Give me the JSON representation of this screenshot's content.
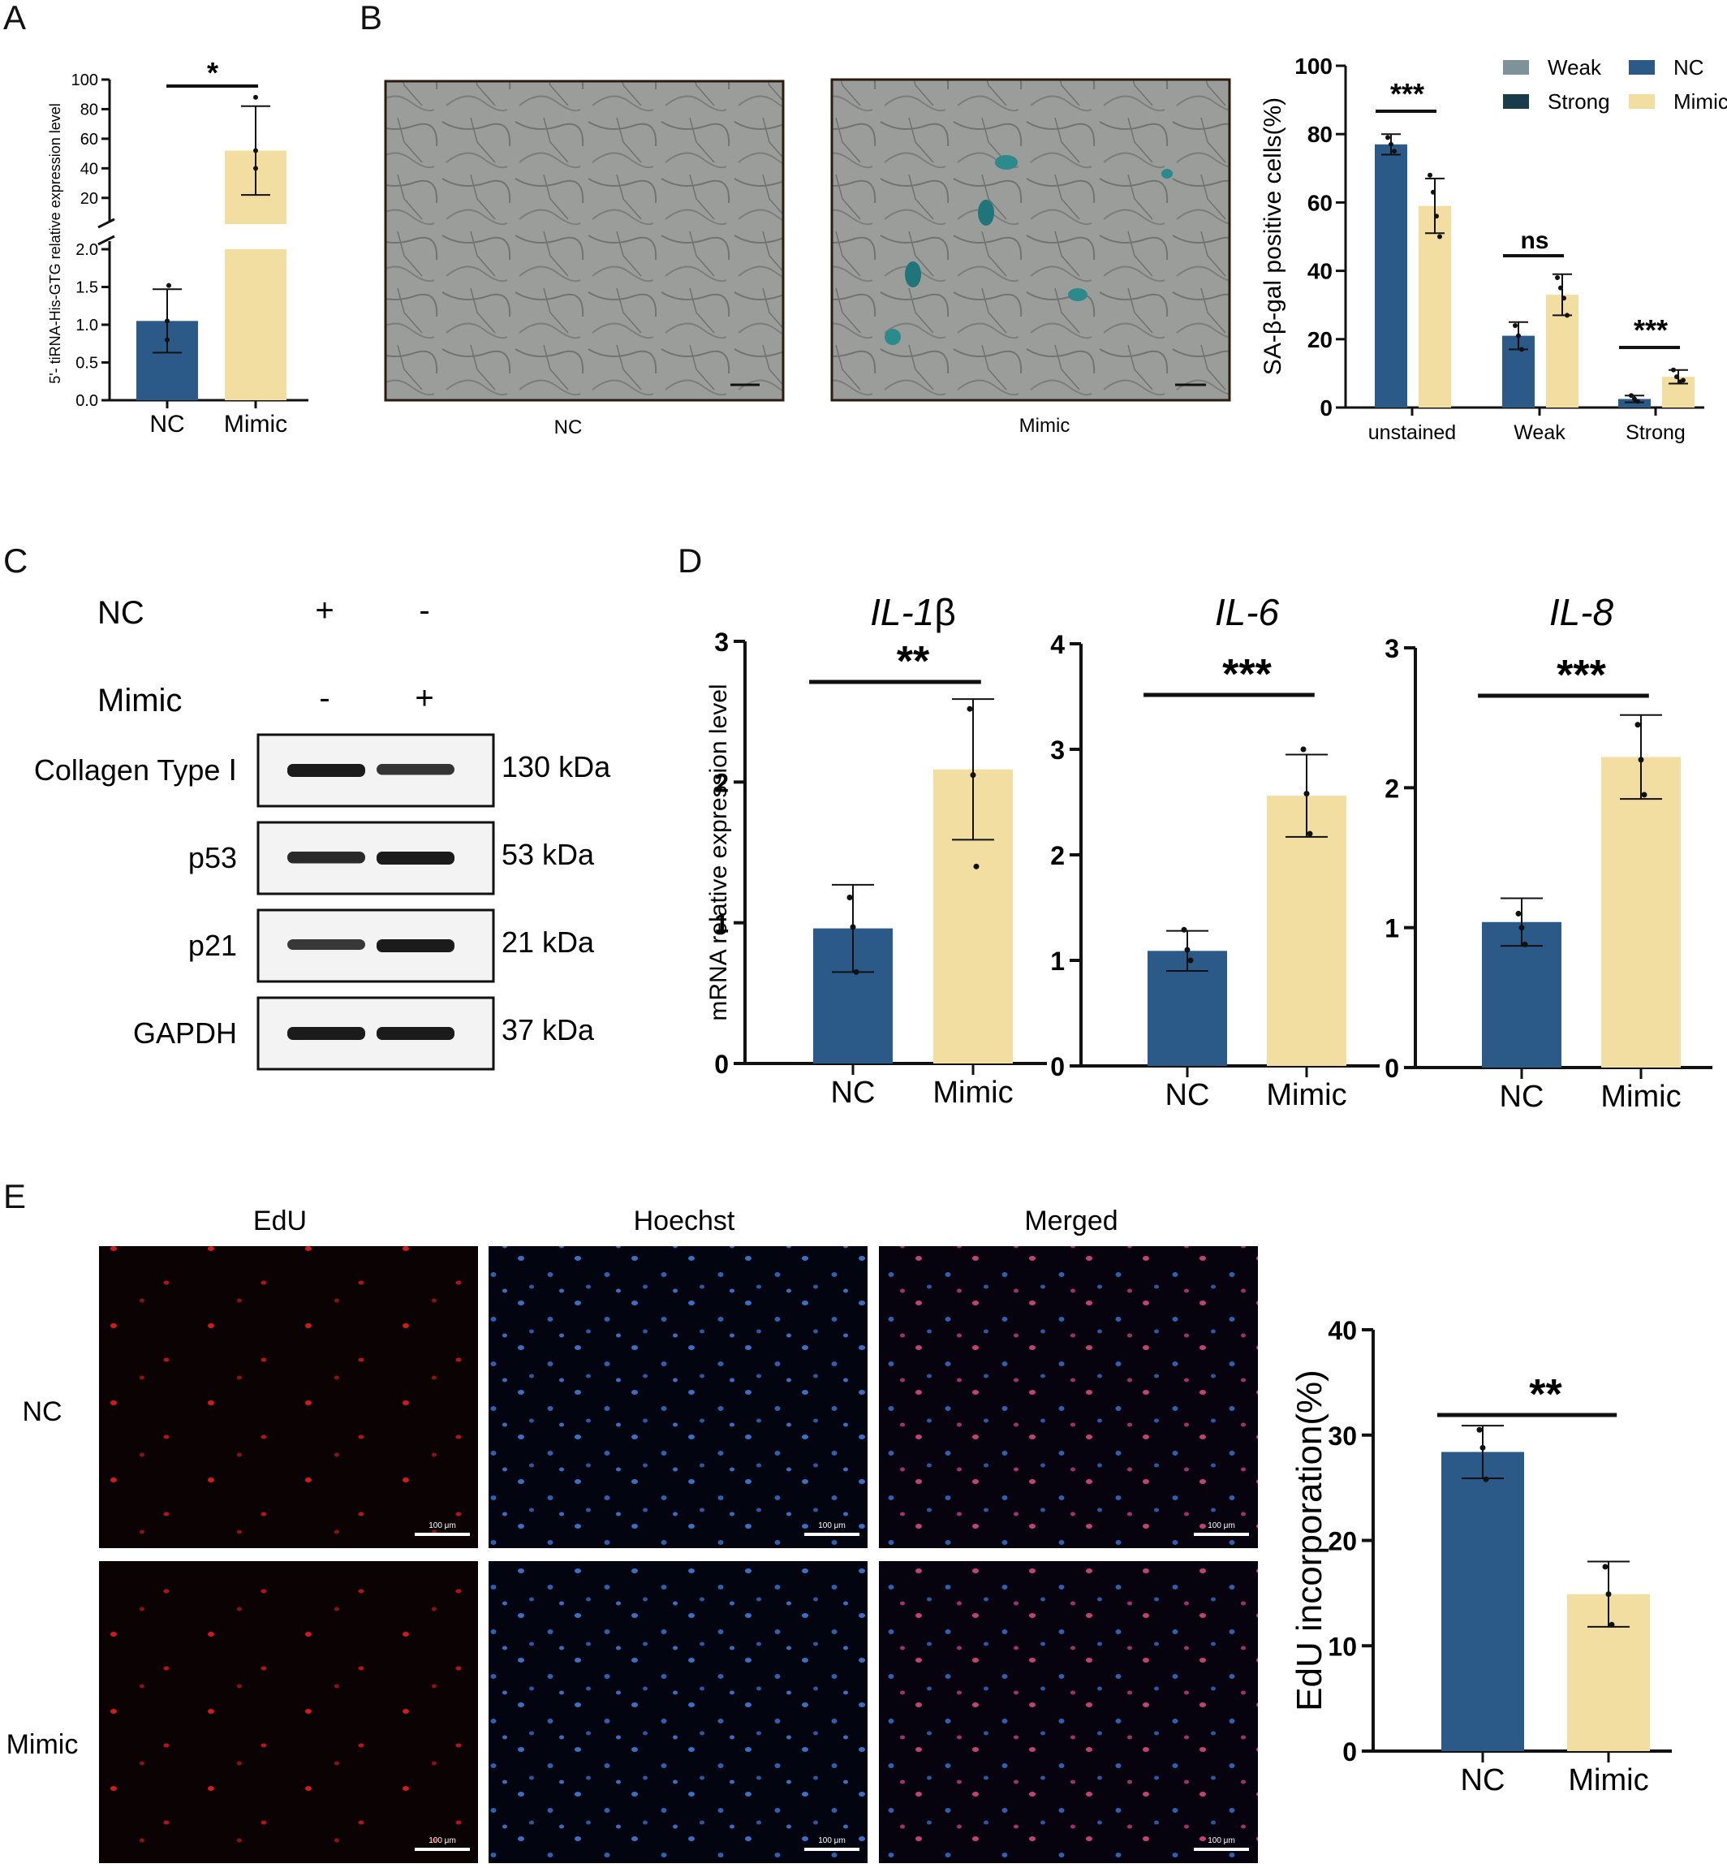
{
  "colors": {
    "nc": "#2c5a88",
    "mimic": "#f3dea2",
    "axis": "#111111",
    "point": "#111111"
  },
  "panels": {
    "A": {
      "letter": "A"
    },
    "B": {
      "letter": "B",
      "image_labels": [
        "NC",
        "Mimic"
      ]
    },
    "C": {
      "letter": "C",
      "row_labels": [
        "NC",
        "Mimic"
      ],
      "row_signs": [
        [
          "+",
          "-"
        ],
        [
          "-",
          "+"
        ]
      ],
      "proteins": [
        {
          "name": "Collagen Type Ⅰ",
          "size": "130  kDa",
          "intensity": [
            1.0,
            0.75
          ]
        },
        {
          "name": "p53",
          "size": "53  kDa",
          "intensity": [
            0.85,
            1.0
          ]
        },
        {
          "name": "p21",
          "size": "21  kDa",
          "intensity": [
            0.7,
            1.0
          ]
        },
        {
          "name": "GAPDH",
          "size": "37  kDa",
          "intensity": [
            1.0,
            1.0
          ]
        }
      ]
    },
    "D": {
      "letter": "D"
    },
    "E": {
      "letter": "E",
      "column_labels": [
        "EdU",
        "Hoechst",
        "Merged"
      ],
      "row_labels": [
        "NC",
        "Mimic"
      ],
      "scale_label": "100 μm"
    }
  },
  "chart_data": [
    {
      "id": "A",
      "type": "bar",
      "broken_axis": true,
      "categories": [
        "NC",
        "Mimic"
      ],
      "values": [
        1.05,
        52
      ],
      "errors": [
        0.42,
        30
      ],
      "points": [
        [
          1.52,
          1.05,
          0.55
        ],
        [
          88,
          52,
          40
        ]
      ],
      "ylabel": "5'- tiRNA-His-GTG relative expression level",
      "lower_ticks": [
        "0.0",
        "0.5",
        "1.0",
        "1.5",
        "2.0"
      ],
      "upper_ticks": [
        "20",
        "40",
        "60",
        "80",
        "100"
      ],
      "ylim_lower": [
        0,
        2
      ],
      "ylim_upper": [
        10,
        100
      ],
      "significance": "*"
    },
    {
      "id": "B",
      "type": "bar",
      "categories": [
        "unstained",
        "Weak",
        "Strong"
      ],
      "series": [
        {
          "name": "NC",
          "values": [
            77,
            21,
            2.5
          ],
          "errors": [
            3,
            4,
            1
          ],
          "points": [
            [
              79,
              77,
              75
            ],
            [
              24,
              21,
              17
            ],
            [
              3.5,
              2.5,
              1.8
            ]
          ]
        },
        {
          "name": "Mimic",
          "values": [
            59,
            33,
            9
          ],
          "errors": [
            8,
            6,
            2
          ],
          "points": [
            [
              68,
              63,
              56,
              50
            ],
            [
              38,
              35,
              32,
              27
            ],
            [
              11,
              9,
              7.5,
              8
            ]
          ]
        }
      ],
      "ylabel": "SA-β-gal positive cells(%)",
      "yticks": [
        "0",
        "20",
        "40",
        "60",
        "80",
        "100"
      ],
      "ylim": [
        0,
        100
      ],
      "significance": [
        "***",
        "ns",
        "***"
      ],
      "legend": [
        {
          "label": "Weak",
          "kind": "image"
        },
        {
          "label": "NC",
          "kind": "swatch"
        },
        {
          "label": "Strong",
          "kind": "image"
        },
        {
          "label": "Mimic",
          "kind": "swatch"
        }
      ],
      "legend_position": "top-right"
    },
    {
      "id": "D1",
      "type": "bar",
      "title": "IL-1",
      "title_suffix": "β",
      "categories": [
        "NC",
        "Mimic"
      ],
      "values": [
        0.96,
        2.09
      ],
      "errors": [
        0.31,
        0.5
      ],
      "points": [
        [
          1.18,
          0.97,
          0.65
        ],
        [
          2.52,
          2.05,
          1.4
        ]
      ],
      "ylabel": "mRNA relative expression level",
      "yticks": [
        "0",
        "1",
        "2",
        "3"
      ],
      "ylim": [
        0,
        3
      ],
      "significance": "**"
    },
    {
      "id": "D2",
      "type": "bar",
      "title": "IL-6",
      "title_suffix": "",
      "categories": [
        "NC",
        "Mimic"
      ],
      "values": [
        1.09,
        2.56
      ],
      "errors": [
        0.19,
        0.39
      ],
      "points": [
        [
          1.29,
          1.1,
          1.0
        ],
        [
          3.0,
          2.58,
          2.2
        ]
      ],
      "yticks": [
        "0",
        "1",
        "2",
        "3",
        "4"
      ],
      "ylim": [
        0,
        4
      ],
      "significance": "***"
    },
    {
      "id": "D3",
      "type": "bar",
      "title": "IL-8",
      "title_suffix": "",
      "categories": [
        "NC",
        "Mimic"
      ],
      "values": [
        1.04,
        2.22
      ],
      "errors": [
        0.17,
        0.3
      ],
      "points": [
        [
          1.1,
          1.0,
          0.88
        ],
        [
          2.45,
          2.2,
          1.95
        ]
      ],
      "yticks": [
        "0",
        "1",
        "2",
        "3"
      ],
      "ylim": [
        0,
        3
      ],
      "significance": "***"
    },
    {
      "id": "E",
      "type": "bar",
      "categories": [
        "NC",
        "Mimic"
      ],
      "values": [
        28.4,
        14.9
      ],
      "errors": [
        2.5,
        3.1
      ],
      "points": [
        [
          30.5,
          28.8,
          25.8
        ],
        [
          17.5,
          14.9,
          12.0
        ]
      ],
      "ylabel": "EdU incorporation(%)",
      "yticks": [
        "0",
        "10",
        "20",
        "30",
        "40"
      ],
      "ylim": [
        0,
        40
      ],
      "significance": "**"
    }
  ]
}
